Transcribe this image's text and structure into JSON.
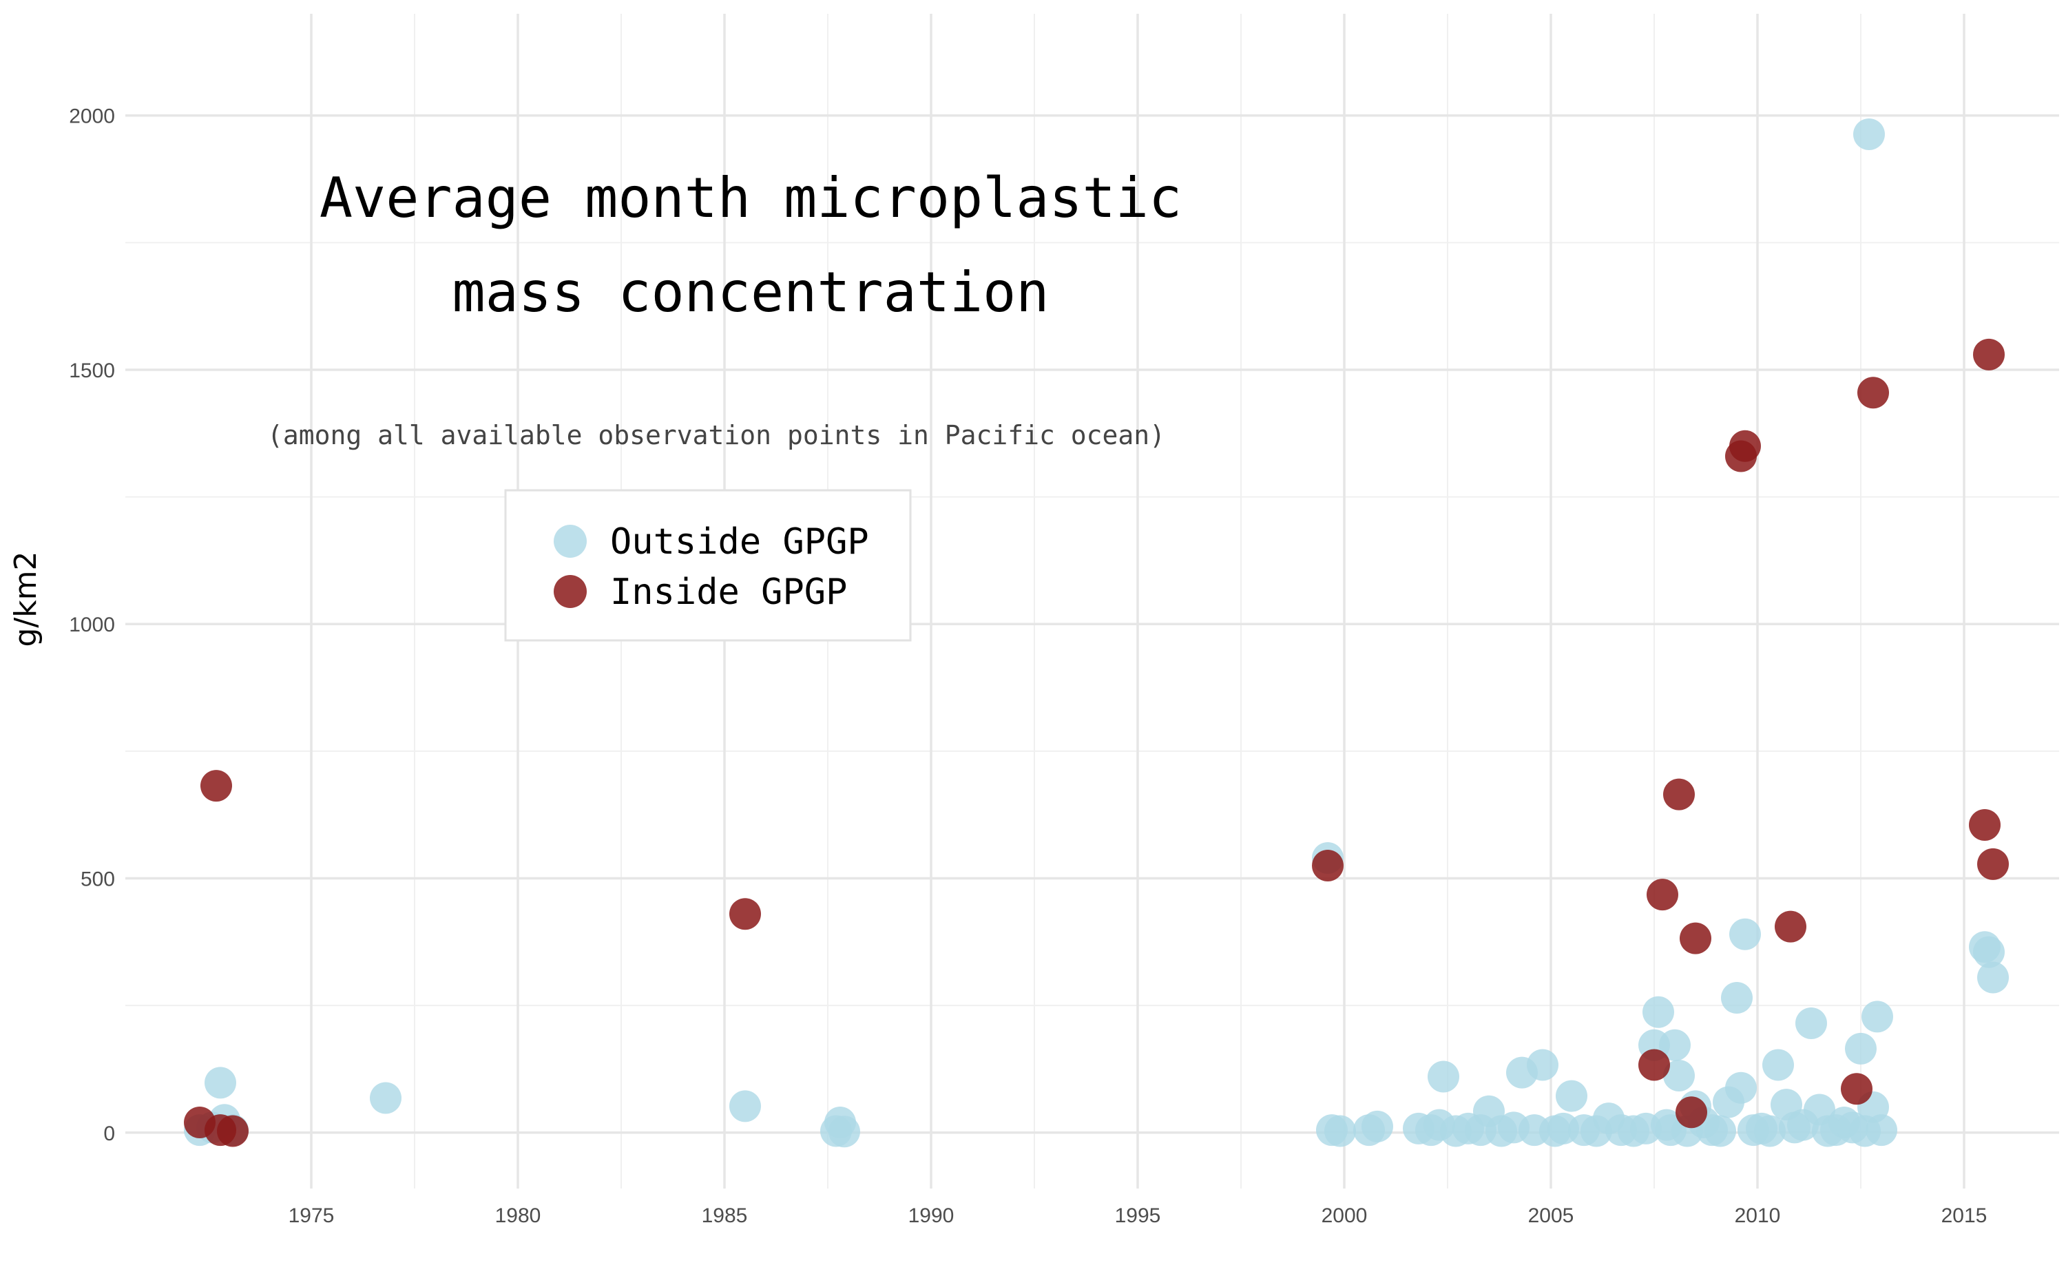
{
  "chart_data": {
    "type": "scatter",
    "title_lines": [
      "Average month microplastic",
      "mass concentration"
    ],
    "subtitle": "(among all available observation points in Pacific ocean)",
    "xlabel": "",
    "ylabel": "g/km2",
    "xlim": [
      1970.5,
      2017.3
    ],
    "ylim": [
      -110,
      2200
    ],
    "x_ticks": [
      1975,
      1980,
      1985,
      1990,
      1995,
      2000,
      2005,
      2010,
      2015
    ],
    "y_ticks": [
      0,
      500,
      1000,
      1500,
      2000
    ],
    "grid": true,
    "legend_position": "top-left (inside plot)",
    "series": [
      {
        "name": "Outside GPGP",
        "color": "#add8e6",
        "points": [
          [
            1972.3,
            5
          ],
          [
            1972.6,
            10
          ],
          [
            1972.8,
            98
          ],
          [
            1972.9,
            25
          ],
          [
            1973.1,
            5
          ],
          [
            1976.8,
            68
          ],
          [
            1985.5,
            52
          ],
          [
            1987.7,
            3
          ],
          [
            1987.8,
            20
          ],
          [
            1987.9,
            2
          ],
          [
            1999.6,
            540
          ],
          [
            1999.7,
            5
          ],
          [
            1999.9,
            3
          ],
          [
            2000.6,
            5
          ],
          [
            2000.8,
            12
          ],
          [
            2001.8,
            8
          ],
          [
            2002.1,
            5
          ],
          [
            2002.3,
            15
          ],
          [
            2002.4,
            110
          ],
          [
            2002.7,
            3
          ],
          [
            2003.0,
            8
          ],
          [
            2003.3,
            5
          ],
          [
            2003.5,
            42
          ],
          [
            2003.8,
            3
          ],
          [
            2004.1,
            10
          ],
          [
            2004.3,
            118
          ],
          [
            2004.6,
            5
          ],
          [
            2004.8,
            133
          ],
          [
            2005.1,
            3
          ],
          [
            2005.3,
            8
          ],
          [
            2005.5,
            72
          ],
          [
            2005.8,
            5
          ],
          [
            2006.1,
            3
          ],
          [
            2006.4,
            28
          ],
          [
            2006.7,
            5
          ],
          [
            2007.0,
            3
          ],
          [
            2007.3,
            8
          ],
          [
            2007.5,
            172
          ],
          [
            2007.6,
            237
          ],
          [
            2007.8,
            15
          ],
          [
            2007.9,
            5
          ],
          [
            2008.0,
            172
          ],
          [
            2008.1,
            112
          ],
          [
            2008.3,
            3
          ],
          [
            2008.5,
            52
          ],
          [
            2008.7,
            20
          ],
          [
            2008.9,
            5
          ],
          [
            2009.1,
            3
          ],
          [
            2009.3,
            60
          ],
          [
            2009.5,
            265
          ],
          [
            2009.6,
            88
          ],
          [
            2009.7,
            390
          ],
          [
            2009.9,
            5
          ],
          [
            2010.1,
            8
          ],
          [
            2010.3,
            3
          ],
          [
            2010.5,
            133
          ],
          [
            2010.7,
            55
          ],
          [
            2010.9,
            10
          ],
          [
            2011.1,
            15
          ],
          [
            2011.3,
            215
          ],
          [
            2011.5,
            45
          ],
          [
            2011.7,
            3
          ],
          [
            2011.9,
            5
          ],
          [
            2012.1,
            20
          ],
          [
            2012.3,
            10
          ],
          [
            2012.5,
            165
          ],
          [
            2012.7,
            1963
          ],
          [
            2012.8,
            50
          ],
          [
            2012.9,
            228
          ],
          [
            2013.0,
            5
          ],
          [
            2012.6,
            3
          ],
          [
            2015.5,
            365
          ],
          [
            2015.6,
            355
          ],
          [
            2015.7,
            305
          ]
        ]
      },
      {
        "name": "Inside GPGP",
        "color": "#8b1a1a",
        "points": [
          [
            1972.3,
            20
          ],
          [
            1972.7,
            682
          ],
          [
            1972.8,
            5
          ],
          [
            1973.1,
            3
          ],
          [
            1985.5,
            430
          ],
          [
            1999.6,
            525
          ],
          [
            2007.5,
            133
          ],
          [
            2007.7,
            468
          ],
          [
            2008.1,
            665
          ],
          [
            2008.4,
            40
          ],
          [
            2008.5,
            382
          ],
          [
            2009.6,
            1330
          ],
          [
            2009.7,
            1350
          ],
          [
            2010.8,
            405
          ],
          [
            2012.4,
            86
          ],
          [
            2012.8,
            1455
          ],
          [
            2015.5,
            605
          ],
          [
            2015.6,
            1530
          ],
          [
            2015.7,
            528
          ]
        ]
      }
    ]
  }
}
